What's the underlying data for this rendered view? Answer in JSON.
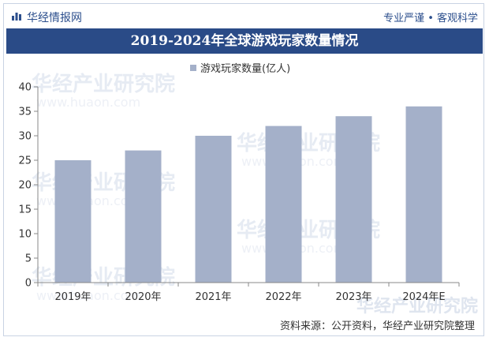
{
  "header": {
    "brand": "华经情报网",
    "tagline": "专业严谨 • 客观科学",
    "logo_icon": "bar-chart-icon"
  },
  "watermark": {
    "text": "华经产业研究院",
    "sub": "www.huaon.com"
  },
  "chart_data": {
    "type": "bar",
    "title": "2019-2024年全球游戏玩家数量情况",
    "categories": [
      "2019年",
      "2020年",
      "2021年",
      "2022年",
      "2023年",
      "2024年E"
    ],
    "series": [
      {
        "name": "游戏玩家数量(亿人)",
        "values": [
          25,
          27,
          30,
          32,
          34,
          36
        ]
      }
    ],
    "xlabel": "",
    "ylabel": "",
    "ylim": [
      0,
      40
    ],
    "yticks": [
      0,
      5,
      10,
      15,
      20,
      25,
      30,
      35,
      40
    ],
    "grid": false,
    "legend": "top-center",
    "bar_color": "#a4b0c9"
  },
  "footer": {
    "source": "资料来源：公开资料，华经产业研究院整理"
  },
  "colors": {
    "title_bg": "#2a4b87",
    "brand": "#2b4e8c"
  }
}
